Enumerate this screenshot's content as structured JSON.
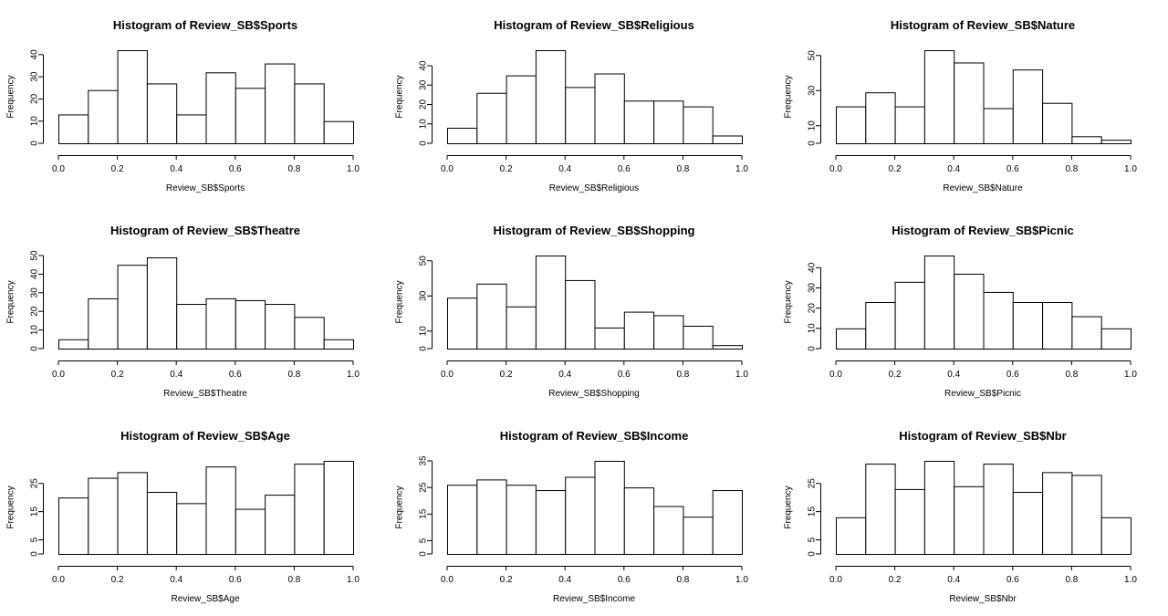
{
  "chart_data": [
    {
      "type": "bar",
      "title": "Histogram of Review_SB$Sports",
      "xlabel": "Review_SB$Sports",
      "ylabel": "Frequency",
      "bins": [
        [
          0.0,
          0.1
        ],
        [
          0.1,
          0.2
        ],
        [
          0.2,
          0.3
        ],
        [
          0.3,
          0.4
        ],
        [
          0.4,
          0.5
        ],
        [
          0.5,
          0.6
        ],
        [
          0.6,
          0.7
        ],
        [
          0.7,
          0.8
        ],
        [
          0.8,
          0.9
        ],
        [
          0.9,
          1.0
        ]
      ],
      "values": [
        13,
        24,
        42,
        27,
        13,
        32,
        25,
        36,
        27,
        10
      ],
      "xlim": [
        0,
        1
      ],
      "xticks": [
        0.0,
        0.2,
        0.4,
        0.6,
        0.8,
        1.0
      ],
      "xtick_labels": [
        "0.0",
        "0.2",
        "0.4",
        "0.6",
        "0.8",
        "1.0"
      ],
      "ylim": [
        0,
        42
      ],
      "yticks": [
        0,
        10,
        20,
        30,
        40
      ]
    },
    {
      "type": "bar",
      "title": "Histogram of Review_SB$Religious",
      "xlabel": "Review_SB$Religious",
      "ylabel": "Frequency",
      "bins": [
        [
          0.0,
          0.1
        ],
        [
          0.1,
          0.2
        ],
        [
          0.2,
          0.3
        ],
        [
          0.3,
          0.4
        ],
        [
          0.4,
          0.5
        ],
        [
          0.5,
          0.6
        ],
        [
          0.6,
          0.7
        ],
        [
          0.7,
          0.8
        ],
        [
          0.8,
          0.9
        ],
        [
          0.9,
          1.0
        ]
      ],
      "values": [
        8,
        26,
        35,
        48,
        29,
        36,
        22,
        22,
        19,
        4
      ],
      "xlim": [
        0,
        1
      ],
      "xticks": [
        0.0,
        0.2,
        0.4,
        0.6,
        0.8,
        1.0
      ],
      "xtick_labels": [
        "0.0",
        "0.2",
        "0.4",
        "0.6",
        "0.8",
        "1.0"
      ],
      "ylim": [
        0,
        48
      ],
      "yticks": [
        0,
        10,
        20,
        30,
        40
      ]
    },
    {
      "type": "bar",
      "title": "Histogram of Review_SB$Nature",
      "xlabel": "Review_SB$Nature",
      "ylabel": "Frequency",
      "bins": [
        [
          0.0,
          0.1
        ],
        [
          0.1,
          0.2
        ],
        [
          0.2,
          0.3
        ],
        [
          0.3,
          0.4
        ],
        [
          0.4,
          0.5
        ],
        [
          0.5,
          0.6
        ],
        [
          0.6,
          0.7
        ],
        [
          0.7,
          0.8
        ],
        [
          0.8,
          0.9
        ],
        [
          0.9,
          1.0
        ]
      ],
      "values": [
        21,
        29,
        21,
        53,
        46,
        20,
        42,
        23,
        4,
        2
      ],
      "xlim": [
        0,
        1
      ],
      "xticks": [
        0.0,
        0.2,
        0.4,
        0.6,
        0.8,
        1.0
      ],
      "xtick_labels": [
        "0.0",
        "0.2",
        "0.4",
        "0.6",
        "0.8",
        "1.0"
      ],
      "ylim": [
        0,
        53
      ],
      "yticks": [
        0,
        10,
        30,
        50
      ]
    },
    {
      "type": "bar",
      "title": "Histogram of Review_SB$Theatre",
      "xlabel": "Review_SB$Theatre",
      "ylabel": "Frequency",
      "bins": [
        [
          0.0,
          0.1
        ],
        [
          0.1,
          0.2
        ],
        [
          0.2,
          0.3
        ],
        [
          0.3,
          0.4
        ],
        [
          0.4,
          0.5
        ],
        [
          0.5,
          0.6
        ],
        [
          0.6,
          0.7
        ],
        [
          0.7,
          0.8
        ],
        [
          0.8,
          0.9
        ],
        [
          0.9,
          1.0
        ]
      ],
      "values": [
        5,
        27,
        45,
        49,
        24,
        27,
        26,
        24,
        17,
        5
      ],
      "xlim": [
        0,
        1
      ],
      "xticks": [
        0.0,
        0.2,
        0.4,
        0.6,
        0.8,
        1.0
      ],
      "xtick_labels": [
        "0.0",
        "0.2",
        "0.4",
        "0.6",
        "0.8",
        "1.0"
      ],
      "ylim": [
        0,
        50
      ],
      "yticks": [
        0,
        10,
        20,
        30,
        40,
        50
      ]
    },
    {
      "type": "bar",
      "title": "Histogram of Review_SB$Shopping",
      "xlabel": "Review_SB$Shopping",
      "ylabel": "Frequency",
      "bins": [
        [
          0.0,
          0.1
        ],
        [
          0.1,
          0.2
        ],
        [
          0.2,
          0.3
        ],
        [
          0.3,
          0.4
        ],
        [
          0.4,
          0.5
        ],
        [
          0.5,
          0.6
        ],
        [
          0.6,
          0.7
        ],
        [
          0.7,
          0.8
        ],
        [
          0.8,
          0.9
        ],
        [
          0.9,
          1.0
        ]
      ],
      "values": [
        29,
        37,
        24,
        53,
        39,
        12,
        21,
        19,
        13,
        2
      ],
      "xlim": [
        0,
        1
      ],
      "xticks": [
        0.0,
        0.2,
        0.4,
        0.6,
        0.8,
        1.0
      ],
      "xtick_labels": [
        "0.0",
        "0.2",
        "0.4",
        "0.6",
        "0.8",
        "1.0"
      ],
      "ylim": [
        0,
        53
      ],
      "yticks": [
        0,
        10,
        30,
        50
      ]
    },
    {
      "type": "bar",
      "title": "Histogram of Review_SB$Picnic",
      "xlabel": "Review_SB$Picnic",
      "ylabel": "Frequency",
      "bins": [
        [
          0.0,
          0.1
        ],
        [
          0.1,
          0.2
        ],
        [
          0.2,
          0.3
        ],
        [
          0.3,
          0.4
        ],
        [
          0.4,
          0.5
        ],
        [
          0.5,
          0.6
        ],
        [
          0.6,
          0.7
        ],
        [
          0.7,
          0.8
        ],
        [
          0.8,
          0.9
        ],
        [
          0.9,
          1.0
        ]
      ],
      "values": [
        10,
        23,
        33,
        46,
        37,
        28,
        23,
        23,
        16,
        10
      ],
      "xlim": [
        0,
        1
      ],
      "xticks": [
        0.0,
        0.2,
        0.4,
        0.6,
        0.8,
        1.0
      ],
      "xtick_labels": [
        "0.0",
        "0.2",
        "0.4",
        "0.6",
        "0.8",
        "1.0"
      ],
      "ylim": [
        0,
        46
      ],
      "yticks": [
        0,
        10,
        20,
        30,
        40
      ]
    },
    {
      "type": "bar",
      "title": "Histogram of Review_SB$Age",
      "xlabel": "Review_SB$Age",
      "ylabel": "Frequency",
      "bins": [
        [
          0.0,
          0.1
        ],
        [
          0.1,
          0.2
        ],
        [
          0.2,
          0.3
        ],
        [
          0.3,
          0.4
        ],
        [
          0.4,
          0.5
        ],
        [
          0.5,
          0.6
        ],
        [
          0.6,
          0.7
        ],
        [
          0.7,
          0.8
        ],
        [
          0.8,
          0.9
        ],
        [
          0.9,
          1.0
        ]
      ],
      "values": [
        20,
        27,
        29,
        22,
        18,
        31,
        16,
        21,
        32,
        33
      ],
      "xlim": [
        0,
        1
      ],
      "xticks": [
        0.0,
        0.2,
        0.4,
        0.6,
        0.8,
        1.0
      ],
      "xtick_labels": [
        "0.0",
        "0.2",
        "0.4",
        "0.6",
        "0.8",
        "1.0"
      ],
      "ylim": [
        0,
        33
      ],
      "yticks": [
        0,
        5,
        15,
        25
      ]
    },
    {
      "type": "bar",
      "title": "Histogram of Review_SB$Income",
      "xlabel": "Review_SB$Income",
      "ylabel": "Frequency",
      "bins": [
        [
          0.0,
          0.1
        ],
        [
          0.1,
          0.2
        ],
        [
          0.2,
          0.3
        ],
        [
          0.3,
          0.4
        ],
        [
          0.4,
          0.5
        ],
        [
          0.5,
          0.6
        ],
        [
          0.6,
          0.7
        ],
        [
          0.7,
          0.8
        ],
        [
          0.8,
          0.9
        ],
        [
          0.9,
          1.0
        ]
      ],
      "values": [
        26,
        28,
        26,
        24,
        29,
        35,
        25,
        18,
        14,
        24
      ],
      "xlim": [
        0,
        1
      ],
      "xticks": [
        0.0,
        0.2,
        0.4,
        0.6,
        0.8,
        1.0
      ],
      "xtick_labels": [
        "0.0",
        "0.2",
        "0.4",
        "0.6",
        "0.8",
        "1.0"
      ],
      "ylim": [
        0,
        35
      ],
      "yticks": [
        0,
        5,
        15,
        25,
        35
      ]
    },
    {
      "type": "bar",
      "title": "Histogram of Review_SB$Nbr",
      "xlabel": "Review_SB$Nbr",
      "ylabel": "Frequency",
      "bins": [
        [
          0.0,
          0.1
        ],
        [
          0.1,
          0.2
        ],
        [
          0.2,
          0.3
        ],
        [
          0.3,
          0.4
        ],
        [
          0.4,
          0.5
        ],
        [
          0.5,
          0.6
        ],
        [
          0.6,
          0.7
        ],
        [
          0.7,
          0.8
        ],
        [
          0.8,
          0.9
        ],
        [
          0.9,
          1.0
        ]
      ],
      "values": [
        13,
        32,
        23,
        33,
        24,
        32,
        22,
        29,
        28,
        13
      ],
      "xlim": [
        0,
        1
      ],
      "xticks": [
        0.0,
        0.2,
        0.4,
        0.6,
        0.8,
        1.0
      ],
      "xtick_labels": [
        "0.0",
        "0.2",
        "0.4",
        "0.6",
        "0.8",
        "1.0"
      ],
      "ylim": [
        0,
        33
      ],
      "yticks": [
        0,
        5,
        15,
        25
      ]
    }
  ]
}
